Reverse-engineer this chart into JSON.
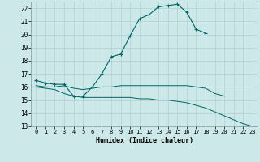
{
  "xlabel": "Humidex (Indice chaleur)",
  "bg_color": "#cce8e8",
  "grid_color": "#aacccc",
  "line_color": "#006666",
  "xlim": [
    -0.5,
    23.5
  ],
  "ylim": [
    13,
    22.5
  ],
  "yticks": [
    13,
    14,
    15,
    16,
    17,
    18,
    19,
    20,
    21,
    22
  ],
  "xticks": [
    0,
    1,
    2,
    3,
    4,
    5,
    6,
    7,
    8,
    9,
    10,
    11,
    12,
    13,
    14,
    15,
    16,
    17,
    18,
    19,
    20,
    21,
    22,
    23
  ],
  "line1_x": [
    0,
    1,
    2,
    3,
    4,
    5,
    6,
    7,
    8,
    9,
    10,
    11,
    12,
    13,
    14,
    15,
    16,
    17,
    18
  ],
  "line1_y": [
    16.5,
    16.3,
    16.2,
    16.2,
    15.3,
    15.3,
    16.0,
    17.0,
    18.3,
    18.5,
    19.9,
    21.2,
    21.5,
    22.1,
    22.2,
    22.3,
    21.7,
    20.4,
    20.1
  ],
  "line2_x": [
    0,
    1,
    2,
    3,
    4,
    5,
    6,
    7,
    8,
    9,
    10,
    11,
    12,
    13,
    14,
    15,
    16,
    17,
    18,
    19,
    20
  ],
  "line2_y": [
    16.1,
    16.0,
    16.0,
    16.1,
    15.9,
    15.8,
    15.9,
    16.0,
    16.0,
    16.1,
    16.1,
    16.1,
    16.1,
    16.1,
    16.1,
    16.1,
    16.1,
    16.0,
    15.9,
    15.5,
    15.3
  ],
  "line3_x": [
    0,
    1,
    2,
    3,
    4,
    5,
    6,
    7,
    8,
    9,
    10,
    11,
    12,
    13,
    14,
    15,
    16,
    17,
    18,
    19,
    20,
    21,
    22,
    23
  ],
  "line3_y": [
    16.0,
    15.9,
    15.8,
    15.5,
    15.3,
    15.2,
    15.2,
    15.2,
    15.2,
    15.2,
    15.2,
    15.1,
    15.1,
    15.0,
    15.0,
    14.9,
    14.8,
    14.6,
    14.4,
    14.1,
    13.8,
    13.5,
    13.2,
    13.0
  ]
}
